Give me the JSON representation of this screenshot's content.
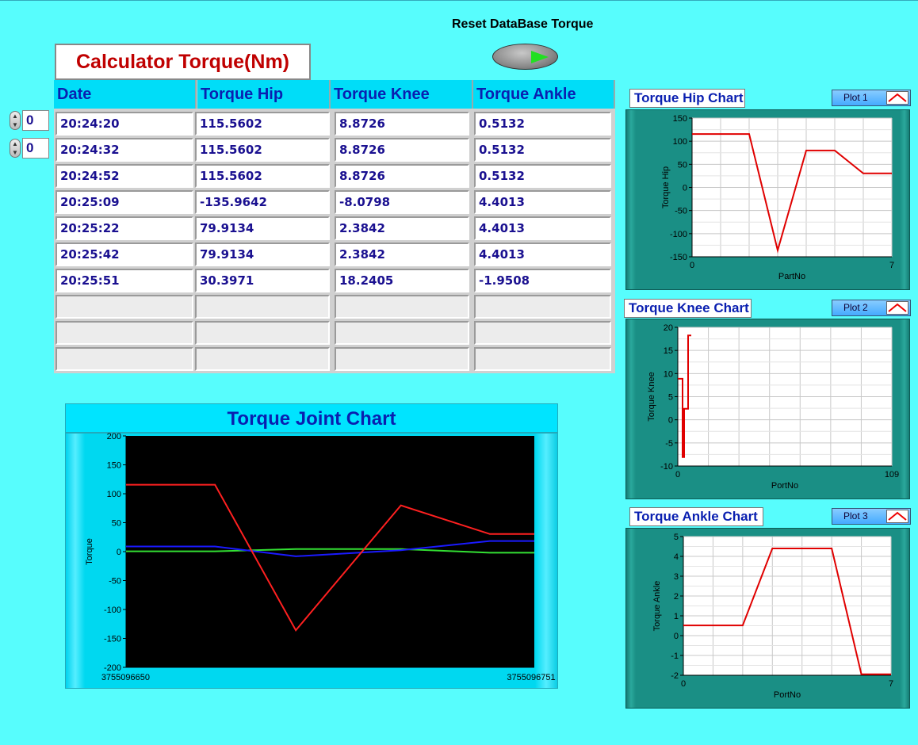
{
  "reset": {
    "label": "Reset DataBase Torque"
  },
  "calc_title": "Calculator Torque(Nm)",
  "table": {
    "headers": [
      "Date",
      "Torque Hip",
      "Torque Knee",
      "Torque Ankle"
    ],
    "index_row": "0",
    "index_col": "0",
    "rows": [
      [
        "20:24:20",
        "115.5602",
        "8.8726",
        "0.5132"
      ],
      [
        "20:24:32",
        "115.5602",
        "8.8726",
        "0.5132"
      ],
      [
        "20:24:52",
        "115.5602",
        "8.8726",
        "0.5132"
      ],
      [
        "20:25:09",
        "-135.9642",
        "-8.0798",
        "4.4013"
      ],
      [
        "20:25:22",
        "79.9134",
        "2.3842",
        "4.4013"
      ],
      [
        "20:25:42",
        "79.9134",
        "2.3842",
        "4.4013"
      ],
      [
        "20:25:51",
        "30.3971",
        "18.2405",
        "-1.9508"
      ],
      [
        "",
        "",
        "",
        ""
      ],
      [
        "",
        "",
        "",
        ""
      ],
      [
        "",
        "",
        "",
        ""
      ]
    ]
  },
  "joint_chart": {
    "title": "Torque Joint Chart"
  },
  "hip_chart": {
    "title": "Torque Hip Chart",
    "legend": "Plot 1"
  },
  "knee_chart": {
    "title": "Torque Knee Chart",
    "legend": "Plot 2"
  },
  "ankle_chart": {
    "title": "Torque Ankle Chart",
    "legend": "Plot 3"
  },
  "colors": {
    "hip": "#ff2020",
    "knee": "#1a1aff",
    "ankle": "#33e033",
    "plot_line": "#e00000"
  },
  "chart_data": [
    {
      "type": "line",
      "title": "Torque Joint Chart",
      "ylabel": "Torque",
      "ylim": [
        -200,
        200
      ],
      "yticks": [
        "200",
        "150",
        "100",
        "50",
        "0",
        "-50",
        "-100",
        "-150",
        "-200"
      ],
      "xlim_labels": [
        "3755096650",
        "3755096751"
      ],
      "x": [
        0,
        22,
        42,
        68,
        90,
        101
      ],
      "series": [
        {
          "values": [
            115.5602,
            115.5602,
            -135.9642,
            79.9134,
            30.3971,
            30.3971
          ]
        },
        {
          "values": [
            8.8726,
            8.8726,
            -8.0798,
            2.3842,
            18.2405,
            18.2405
          ]
        },
        {
          "values": [
            0.5132,
            0.5132,
            4.4013,
            4.4013,
            -1.9508,
            -1.9508
          ]
        }
      ],
      "grid": false
    },
    {
      "type": "line",
      "title": "Torque Hip Chart",
      "xlabel": "PartNo",
      "ylabel": "Torque Hip",
      "ylim": [
        -150,
        150
      ],
      "yticks": [
        "150",
        "100",
        "50",
        "0",
        "-50",
        "-100",
        "-150"
      ],
      "xlim": [
        0,
        7
      ],
      "xticks": [
        "0",
        "7"
      ],
      "x": [
        0,
        1,
        2,
        3,
        4,
        5,
        6,
        7
      ],
      "series": [
        {
          "name": "Plot 1",
          "values": [
            115.5602,
            115.5602,
            115.5602,
            -135.9642,
            79.9134,
            79.9134,
            30.3971,
            30.3971
          ]
        }
      ],
      "grid": true
    },
    {
      "type": "line",
      "title": "Torque Knee Chart",
      "xlabel": "PortNo",
      "ylabel": "Torque Knee",
      "ylim": [
        -10,
        20
      ],
      "yticks": [
        "20",
        "15",
        "10",
        "5",
        "0",
        "-5",
        "-10"
      ],
      "xlim": [
        0,
        109
      ],
      "xticks": [
        "0",
        "109"
      ],
      "x": [
        0,
        1,
        2,
        3,
        4,
        5,
        6,
        7
      ],
      "series": [
        {
          "name": "Plot 2",
          "values": [
            8.8726,
            8.8726,
            8.8726,
            -8.0798,
            2.3842,
            2.3842,
            18.2405,
            18.2405
          ]
        }
      ],
      "grid": true
    },
    {
      "type": "line",
      "title": "Torque Ankle Chart",
      "xlabel": "PortNo",
      "ylabel": "Torque Ankle",
      "ylim": [
        -2,
        5
      ],
      "yticks": [
        "5",
        "4",
        "3",
        "2",
        "1",
        "0",
        "-1",
        "-2"
      ],
      "xlim": [
        0,
        7
      ],
      "xticks": [
        "0",
        "7"
      ],
      "x": [
        0,
        1,
        2,
        3,
        4,
        5,
        6,
        7
      ],
      "series": [
        {
          "name": "Plot 3",
          "values": [
            0.5132,
            0.5132,
            0.5132,
            4.4013,
            4.4013,
            4.4013,
            -1.9508,
            -1.9508
          ]
        }
      ],
      "grid": true
    }
  ]
}
